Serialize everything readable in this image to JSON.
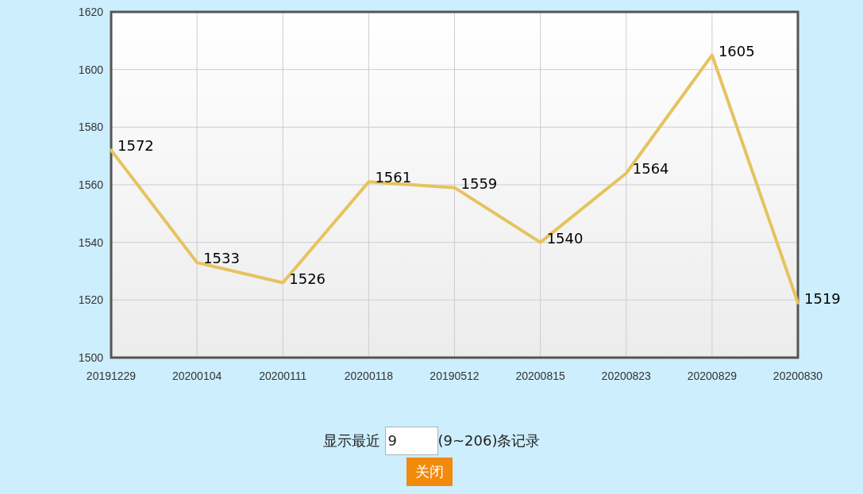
{
  "chart_data": {
    "type": "line",
    "categories": [
      "20191229",
      "20200104",
      "20200111",
      "20200118",
      "20190512",
      "20200815",
      "20200823",
      "20200829",
      "20200830"
    ],
    "values": [
      1572,
      1533,
      1526,
      1561,
      1559,
      1540,
      1564,
      1605,
      1519
    ],
    "color": "#e6c35e",
    "ylim": [
      1500,
      1620
    ],
    "yticks": [
      1500,
      1520,
      1540,
      1560,
      1580,
      1600,
      1620
    ],
    "grid": true,
    "data_labels": true,
    "annotations": [
      "显示最近",
      "9",
      "(9~206)条记录",
      "关闭"
    ]
  }
}
